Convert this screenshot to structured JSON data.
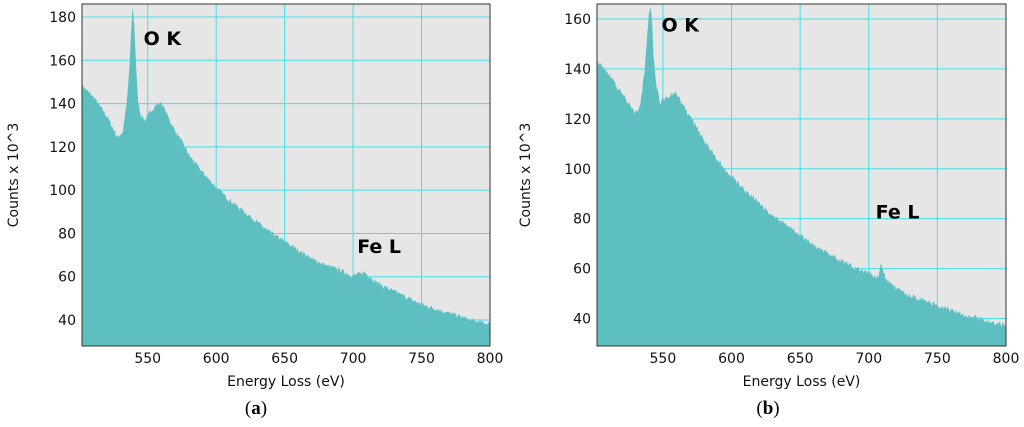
{
  "chart_data": [
    {
      "type": "area",
      "panel_label": "a",
      "xlabel": "Energy Loss (eV)",
      "ylabel": "Counts x 10^3",
      "xlim": [
        502,
        800
      ],
      "ylim": [
        28,
        186
      ],
      "x_ticks": [
        550,
        600,
        650,
        700,
        750,
        800
      ],
      "y_ticks": [
        40,
        60,
        80,
        100,
        120,
        140,
        160,
        180
      ],
      "grid": true,
      "fill_color": "#5ebfc0",
      "plot_bg": "#e6e6e6",
      "grid_color": "#44e0e8",
      "annotations": [
        {
          "text": "O K",
          "x": 547,
          "y": 167
        },
        {
          "text": "Fe L",
          "x": 703,
          "y": 71
        }
      ],
      "series": [
        {
          "x": [
            502,
            510,
            520,
            528,
            532,
            535,
            537,
            538,
            539,
            540,
            541,
            542,
            543,
            545,
            548,
            552,
            556,
            560,
            563,
            566,
            570,
            575,
            580,
            585,
            590,
            600,
            610,
            620,
            630,
            640,
            650,
            660,
            670,
            680,
            690,
            700,
            703,
            706,
            708,
            710,
            712,
            715,
            720,
            730,
            740,
            750,
            760,
            770,
            780,
            790,
            800
          ],
          "values": [
            148,
            143,
            134,
            124,
            127,
            141,
            158,
            172,
            183,
            176,
            162,
            148,
            140,
            134,
            132,
            136,
            139,
            140,
            136,
            132,
            127,
            122,
            116,
            112,
            108,
            101,
            95,
            90,
            85,
            80,
            76,
            72,
            68,
            65,
            63,
            60,
            61,
            61,
            62,
            61,
            60,
            58,
            56,
            53,
            50,
            47,
            45,
            43,
            41,
            39,
            38
          ]
        }
      ]
    },
    {
      "type": "area",
      "panel_label": "b",
      "xlabel": "Energy Loss (eV)",
      "ylabel": "Counts x 10^3",
      "xlim": [
        502,
        800
      ],
      "ylim": [
        29,
        166
      ],
      "x_ticks": [
        550,
        600,
        650,
        700,
        750,
        800
      ],
      "y_ticks": [
        40,
        60,
        80,
        100,
        120,
        140,
        160
      ],
      "grid": true,
      "fill_color": "#5ebfc0",
      "plot_bg": "#e6e6e6",
      "grid_color": "#44e0e8",
      "annotations": [
        {
          "text": "O K",
          "x": 549,
          "y": 155
        },
        {
          "text": "Fe L",
          "x": 705,
          "y": 80
        }
      ],
      "series": [
        {
          "x": [
            502,
            510,
            520,
            530,
            534,
            537,
            539,
            540,
            541,
            542,
            543,
            545,
            548,
            552,
            556,
            560,
            563,
            566,
            570,
            575,
            580,
            585,
            590,
            600,
            610,
            620,
            630,
            640,
            650,
            660,
            670,
            680,
            690,
            700,
            703,
            705,
            707,
            708,
            709,
            710,
            712,
            715,
            720,
            730,
            740,
            750,
            760,
            770,
            780,
            790,
            800
          ],
          "values": [
            143,
            138,
            130,
            122,
            126,
            140,
            155,
            162,
            165,
            158,
            145,
            133,
            126,
            128,
            129,
            130,
            127,
            124,
            120,
            116,
            111,
            107,
            103,
            97,
            91,
            86,
            81,
            77,
            73,
            69,
            66,
            63,
            60,
            58,
            57,
            56,
            57,
            59,
            62,
            60,
            56,
            54,
            52,
            49,
            47,
            45,
            43,
            41,
            40,
            38,
            37
          ]
        }
      ]
    }
  ]
}
